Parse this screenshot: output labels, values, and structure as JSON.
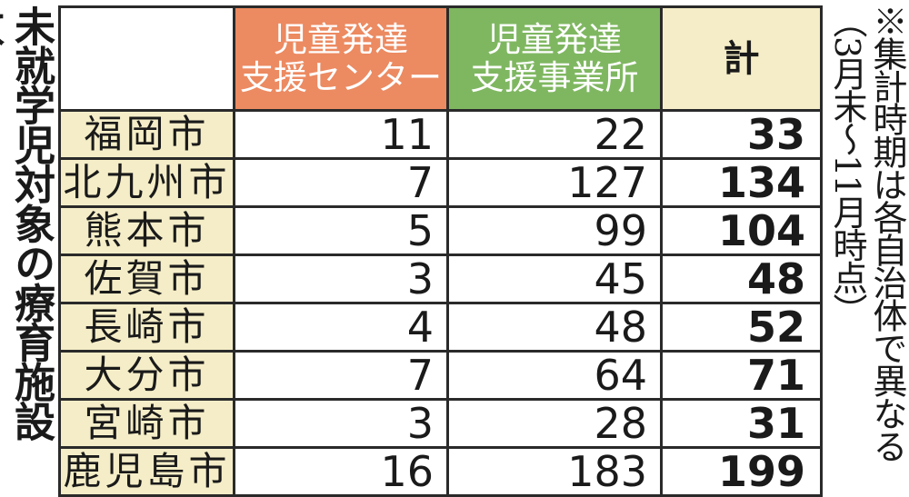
{
  "title": "未就学児対象の療育施設数",
  "note": [
    "※集計時期は各自治体で異なる",
    "（3月末～11月時点）"
  ],
  "columns": {
    "empty": "",
    "center_line1": "児童発達",
    "center_line2": "支援センター",
    "office_line1": "児童発達",
    "office_line2": "支援事業所",
    "total": "計"
  },
  "rows": [
    {
      "city": "福岡市",
      "center": "11",
      "office": "22",
      "total": "33"
    },
    {
      "city": "北九州市",
      "center": "7",
      "office": "127",
      "total": "134"
    },
    {
      "city": "熊本市",
      "center": "5",
      "office": "99",
      "total": "104"
    },
    {
      "city": "佐賀市",
      "center": "3",
      "office": "45",
      "total": "48"
    },
    {
      "city": "長崎市",
      "center": "4",
      "office": "48",
      "total": "52"
    },
    {
      "city": "大分市",
      "center": "7",
      "office": "64",
      "total": "71"
    },
    {
      "city": "宮崎市",
      "center": "3",
      "office": "28",
      "total": "31"
    },
    {
      "city": "鹿児島市",
      "center": "16",
      "office": "183",
      "total": "199"
    }
  ],
  "colors": {
    "center_header": "#ec8a61",
    "office_header": "#7fb761",
    "total_header_and_city": "#f4edc7",
    "border": "#2a2a2a"
  }
}
